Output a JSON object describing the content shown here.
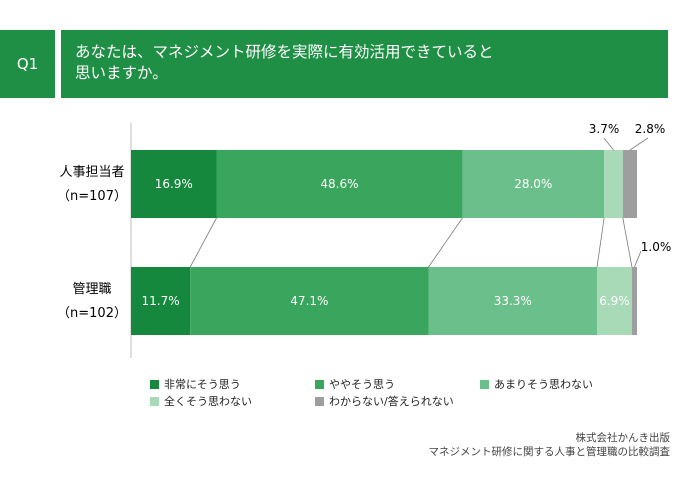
{
  "header": {
    "q_label": "Q1",
    "title_line1": "あなたは、マネジメント研修を実際に有効活用できていると",
    "title_line2": "思いますか。"
  },
  "colors": {
    "brand": "#1f8f45",
    "series": [
      "#15883d",
      "#3aa55c",
      "#6bbf8a",
      "#a8dab8",
      "#9e9e9e"
    ],
    "connector": "#7a7a7a"
  },
  "chart_data": {
    "type": "bar",
    "orientation": "horizontal",
    "stacked": "100%",
    "categories": [
      {
        "label": "人事担当者",
        "sublabel": "（n=107）"
      },
      {
        "label": "管理職",
        "sublabel": "（n=102）"
      }
    ],
    "series": [
      {
        "name": "非常にそう思う",
        "values": [
          16.9,
          11.7
        ],
        "labels": [
          "16.9%",
          "11.7%"
        ]
      },
      {
        "name": "ややそう思う",
        "values": [
          48.6,
          47.1
        ],
        "labels": [
          "48.6%",
          "47.1%"
        ]
      },
      {
        "name": "あまりそう思わない",
        "values": [
          28.0,
          33.3
        ],
        "labels": [
          "28.0%",
          "33.3%"
        ]
      },
      {
        "name": "全くそう思わない",
        "values": [
          3.7,
          6.9
        ],
        "labels": [
          "3.7%",
          "6.9%"
        ]
      },
      {
        "name": "わからない/答えられない",
        "values": [
          2.8,
          1.0
        ],
        "labels": [
          "2.8%",
          "1.0%"
        ]
      }
    ],
    "xlim": [
      0,
      100
    ],
    "grid": false,
    "legend_position": "bottom"
  },
  "footer": {
    "line1": "株式会社かんき出版",
    "line2": "マネジメント研修に関する人事と管理職の比較調査"
  }
}
